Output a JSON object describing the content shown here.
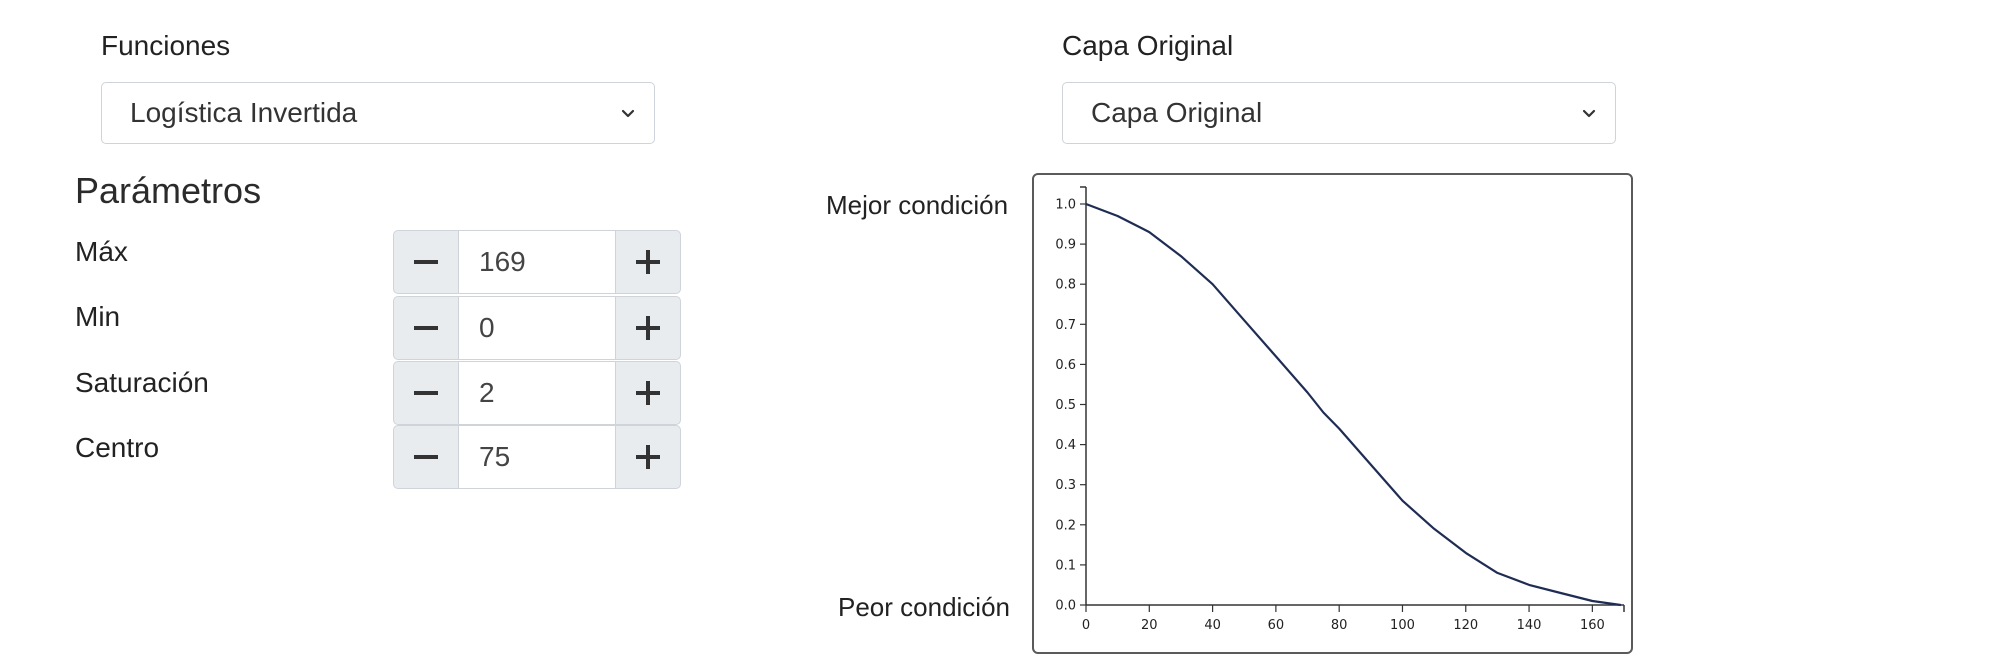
{
  "funciones": {
    "label": "Funciones",
    "selected": "Logística Invertida"
  },
  "capa": {
    "label": "Capa Original",
    "selected": "Capa Original"
  },
  "parametros": {
    "title": "Parámetros",
    "items": [
      {
        "label": "Máx",
        "value": "169"
      },
      {
        "label": "Min",
        "value": "0"
      },
      {
        "label": "Saturación",
        "value": "2"
      },
      {
        "label": "Centro",
        "value": "75"
      }
    ]
  },
  "chart_side_labels": {
    "top": "Mejor condición",
    "bottom": "Peor condición"
  },
  "chart_data": {
    "type": "line",
    "xlim": [
      0,
      170
    ],
    "ylim": [
      0,
      1.05
    ],
    "x_ticks": [
      0,
      20,
      40,
      60,
      80,
      100,
      120,
      140,
      160
    ],
    "y_ticks": [
      "0.0",
      "0.1",
      "0.2",
      "0.3",
      "0.4",
      "0.5",
      "0.6",
      "0.7",
      "0.8",
      "0.9",
      "1.0"
    ],
    "series": [
      {
        "color": "#1f2d54",
        "x": [
          0,
          10,
          20,
          30,
          40,
          50,
          60,
          70,
          75,
          80,
          90,
          100,
          110,
          120,
          130,
          140,
          150,
          160,
          169
        ],
        "y": [
          1.0,
          0.97,
          0.93,
          0.87,
          0.8,
          0.71,
          0.62,
          0.53,
          0.48,
          0.44,
          0.35,
          0.26,
          0.19,
          0.13,
          0.08,
          0.05,
          0.03,
          0.01,
          0.0
        ]
      }
    ],
    "grid": false
  }
}
